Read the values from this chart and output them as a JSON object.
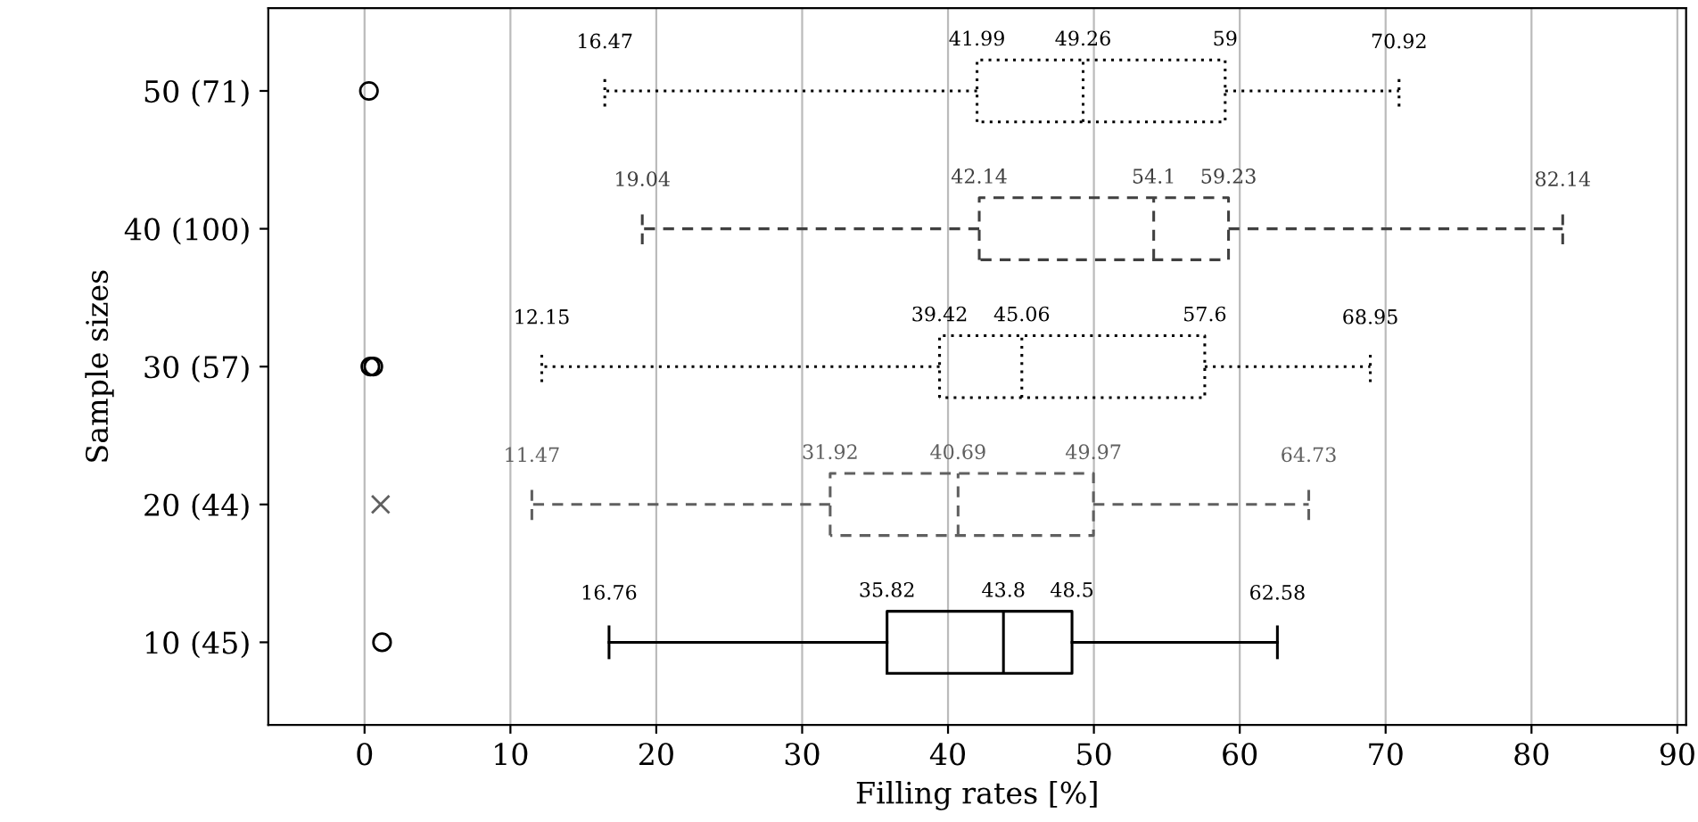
{
  "chart_data": {
    "type": "box",
    "orientation": "horizontal",
    "xlabel": "Filling rates [%]",
    "ylabel": "Sample sizes",
    "categories": [
      "50 (71)",
      "40 (100)",
      "30 (57)",
      "20 (44)",
      "10 (45)"
    ],
    "series": [
      {
        "color": "#000000",
        "line_style": "dotted",
        "marker": "circle",
        "boxes": [
          {
            "low": 16.47,
            "q1": 41.99,
            "median": 49.26,
            "q3": 59,
            "high": 70.92,
            "outliers": [
              0.3
            ]
          },
          null,
          null,
          null,
          null
        ],
        "value_labels": [
          "16.47",
          "41.99",
          "49.26",
          "59",
          "70.92"
        ]
      },
      {
        "color": "#404040",
        "line_style": "dashed",
        "boxes": [
          null,
          {
            "low": 19.04,
            "q1": 42.14,
            "median": 54.1,
            "q3": 59.23,
            "high": 82.14
          },
          null,
          null,
          null
        ],
        "value_labels": [
          "19.04",
          "42.14",
          "54.1",
          "59.23",
          "82.14"
        ]
      },
      {
        "color": "#000000",
        "line_style": "dotted",
        "marker": "circle",
        "boxes": [
          null,
          null,
          {
            "low": 12.15,
            "q1": 39.42,
            "median": 45.06,
            "q3": 57.6,
            "high": 68.95,
            "outliers": [
              0.4,
              0.6
            ]
          },
          null,
          null
        ],
        "value_labels": [
          "12.15",
          "39.42",
          "45.06",
          "57.6",
          "68.95"
        ]
      },
      {
        "color": "#606060",
        "line_style": "dashed",
        "marker": "cross",
        "boxes": [
          null,
          null,
          null,
          {
            "low": 11.47,
            "q1": 31.92,
            "median": 40.69,
            "q3": 49.97,
            "high": 64.73,
            "outliers": [
              1.1
            ]
          },
          null
        ],
        "value_labels": [
          "11.47",
          "31.92",
          "40.69",
          "49.97",
          "64.73"
        ]
      },
      {
        "color": "#000000",
        "line_style": "solid",
        "marker": "circle",
        "boxes": [
          null,
          null,
          null,
          null,
          {
            "low": 16.76,
            "q1": 35.82,
            "median": 43.8,
            "q3": 48.5,
            "high": 62.58,
            "outliers": [
              1.2
            ]
          }
        ],
        "value_labels": [
          "16.76",
          "35.82",
          "43.8",
          "48.5",
          "62.58"
        ]
      }
    ],
    "xlim": [
      -6.6,
      90.6
    ],
    "xticks": [
      0,
      10,
      20,
      30,
      40,
      50,
      60,
      70,
      80,
      90
    ],
    "grid": "x"
  }
}
